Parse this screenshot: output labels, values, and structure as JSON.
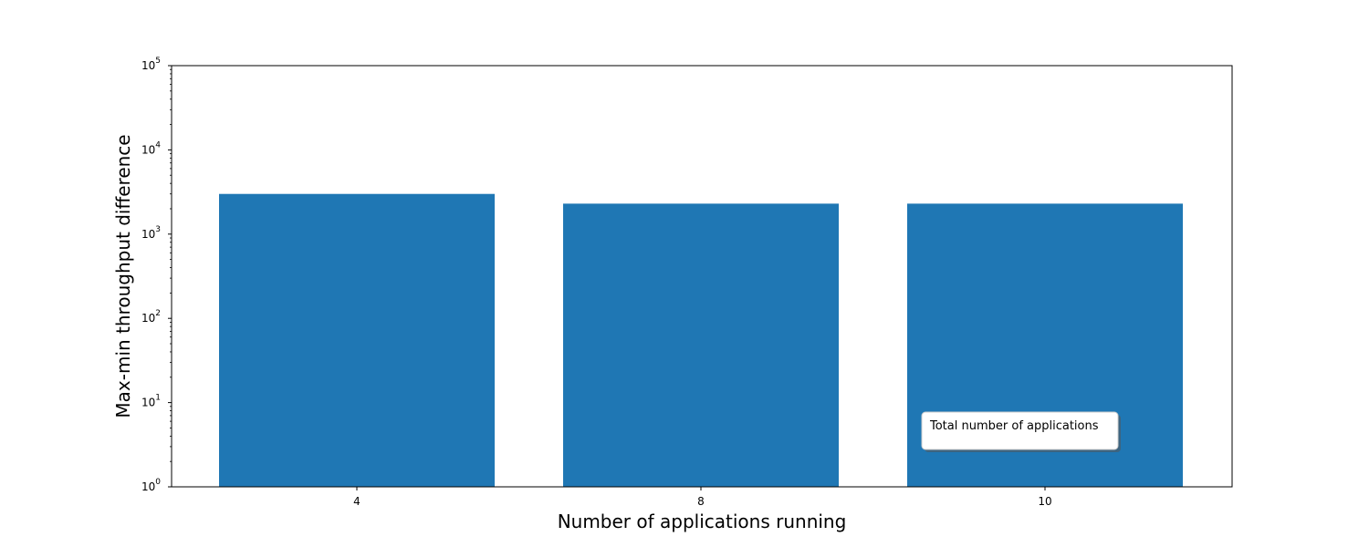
{
  "chart_data": {
    "type": "bar",
    "categories": [
      "4",
      "8",
      "10"
    ],
    "values": [
      3000,
      2300,
      2300
    ],
    "title": "",
    "xlabel": "Number of applications running",
    "ylabel": "Max-min throughput difference",
    "yscale": "log",
    "ylim": [
      1,
      100000
    ],
    "y_ticks": [
      {
        "base": "10",
        "exp": "0"
      },
      {
        "base": "10",
        "exp": "1"
      },
      {
        "base": "10",
        "exp": "2"
      },
      {
        "base": "10",
        "exp": "3"
      },
      {
        "base": "10",
        "exp": "4"
      },
      {
        "base": "10",
        "exp": "5"
      }
    ],
    "bar_color": "#1f77b4",
    "grid": false,
    "legend": {
      "title": "Total number of applications",
      "placement": "lower-right"
    }
  }
}
